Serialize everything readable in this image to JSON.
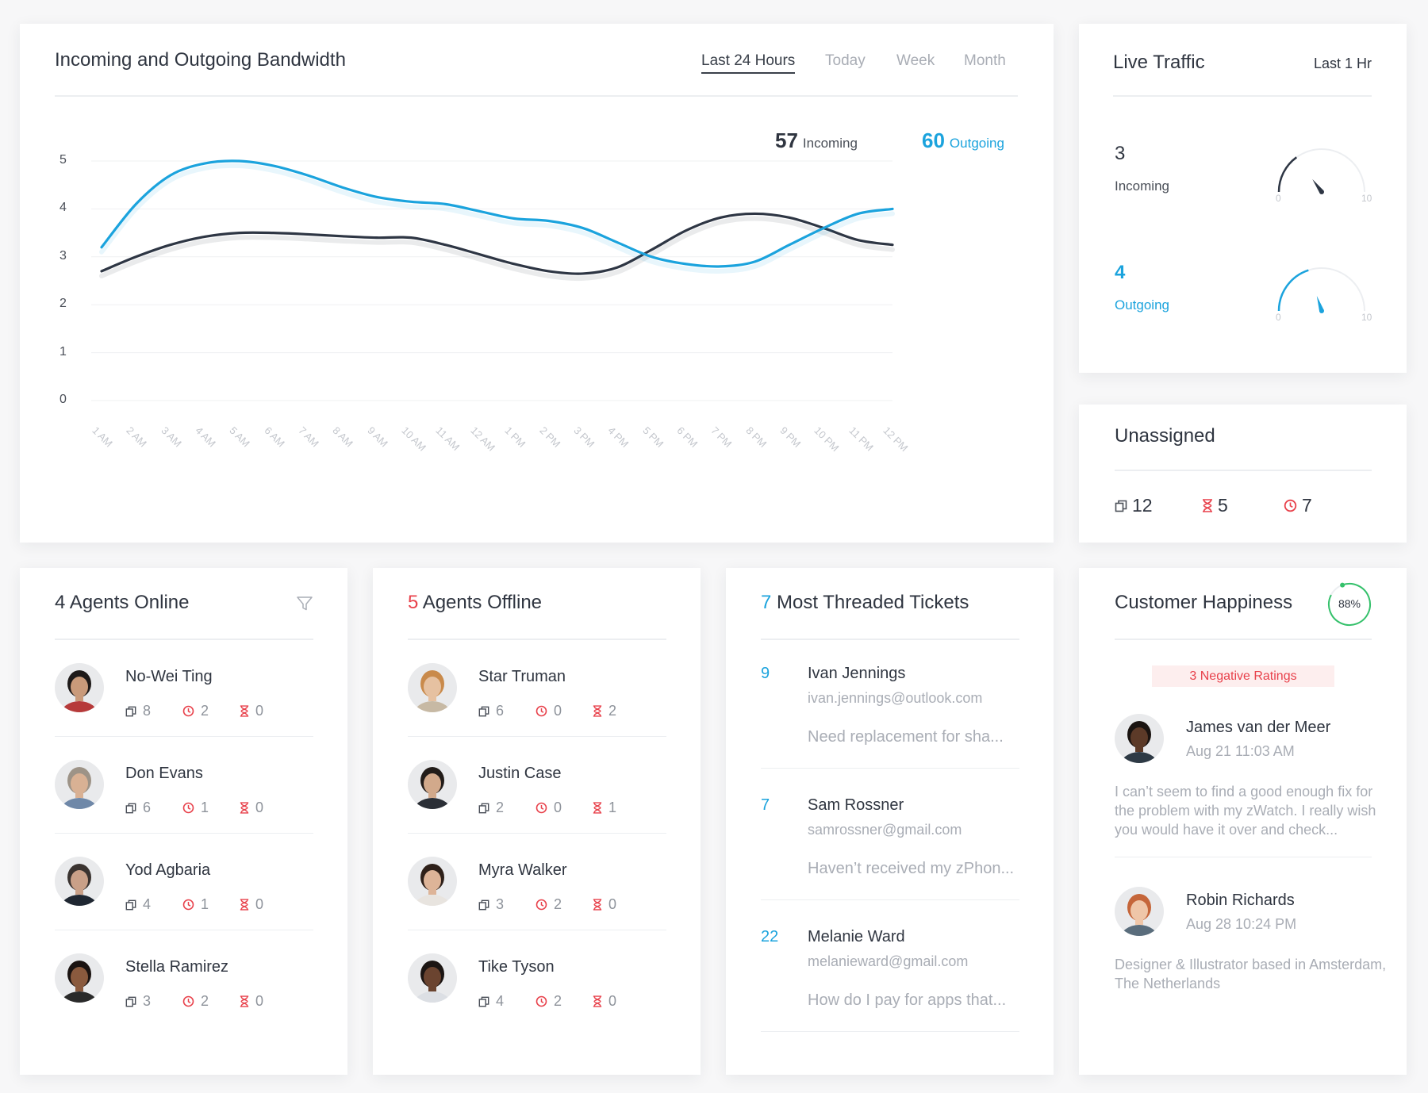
{
  "bandwidth": {
    "title": "Incoming and Outgoing Bandwidth",
    "tabs": [
      "Last 24 Hours",
      "Today",
      "Week",
      "Month"
    ],
    "active_tab": 0,
    "incoming_value": "57",
    "incoming_label": "Incoming",
    "outgoing_value": "60",
    "outgoing_label": "Outgoing"
  },
  "chart_data": {
    "type": "line",
    "x": [
      "1 AM",
      "2 AM",
      "3 AM",
      "4 AM",
      "5 AM",
      "6 AM",
      "7 AM",
      "8 AM",
      "9 AM",
      "10 AM",
      "11 AM",
      "12 AM",
      "1 PM",
      "2 PM",
      "3 PM",
      "4 PM",
      "5 PM",
      "6 PM",
      "7 PM",
      "8 PM",
      "9 PM",
      "10 PM",
      "11 PM",
      "12 PM"
    ],
    "series": [
      {
        "name": "Incoming",
        "color": "#2e3644",
        "values": [
          2.7,
          3.0,
          3.25,
          3.42,
          3.5,
          3.5,
          3.47,
          3.43,
          3.4,
          3.4,
          3.25,
          3.05,
          2.85,
          2.7,
          2.65,
          2.78,
          3.15,
          3.55,
          3.82,
          3.9,
          3.82,
          3.6,
          3.35,
          3.25
        ]
      },
      {
        "name": "Outgoing",
        "color": "#1ba3dd",
        "values": [
          3.2,
          4.1,
          4.7,
          4.95,
          5.0,
          4.9,
          4.7,
          4.45,
          4.25,
          4.15,
          4.1,
          3.95,
          3.8,
          3.75,
          3.6,
          3.3,
          3.0,
          2.85,
          2.8,
          2.9,
          3.25,
          3.6,
          3.9,
          4.0
        ]
      }
    ],
    "yticks": [
      0,
      1,
      2,
      3,
      4,
      5
    ],
    "ylim": [
      0,
      5
    ],
    "grid": true
  },
  "live_traffic": {
    "title": "Live Traffic",
    "period": "Last 1 Hr",
    "incoming": {
      "value": "3",
      "label": "Incoming",
      "gauge": 3,
      "min": "0",
      "max": "10"
    },
    "outgoing": {
      "value": "4",
      "label": "Outgoing",
      "gauge": 4,
      "min": "0",
      "max": "10"
    }
  },
  "unassigned": {
    "title": "Unassigned",
    "tickets": "12",
    "pending": "5",
    "overdue": "7"
  },
  "agents_online": {
    "count": "4",
    "label": "Agents Online",
    "agents": [
      {
        "name": "No-Wei Ting",
        "tickets": "8",
        "overdue": "2",
        "pending": "0",
        "skin": "#c99a7a",
        "hair": "#1e1a19",
        "shirt": "#b63a3a"
      },
      {
        "name": "Don Evans",
        "tickets": "6",
        "overdue": "1",
        "pending": "0",
        "skin": "#d9b194",
        "hair": "#9d9387",
        "shirt": "#6f88a8"
      },
      {
        "name": "Yod Agbaria",
        "tickets": "4",
        "overdue": "1",
        "pending": "0",
        "skin": "#c9a088",
        "hair": "#3a3330",
        "shirt": "#1f2732"
      },
      {
        "name": "Stella Ramirez",
        "tickets": "3",
        "overdue": "2",
        "pending": "0",
        "skin": "#8a5a3e",
        "hair": "#1b1412",
        "shirt": "#2a2a2a"
      }
    ]
  },
  "agents_offline": {
    "count": "5",
    "label": "Agents Offline",
    "agents": [
      {
        "name": "Star Truman",
        "tickets": "6",
        "overdue": "0",
        "pending": "2",
        "skin": "#e6c1a1",
        "hair": "#c98a4b",
        "shirt": "#c7b9a4"
      },
      {
        "name": "Justin Case",
        "tickets": "2",
        "overdue": "0",
        "pending": "1",
        "skin": "#d2a98b",
        "hair": "#221c19",
        "shirt": "#2b2f36"
      },
      {
        "name": "Myra Walker",
        "tickets": "3",
        "overdue": "2",
        "pending": "0",
        "skin": "#ddb498",
        "hair": "#2e2019",
        "shirt": "#e8e4df"
      },
      {
        "name": "Tike Tyson",
        "tickets": "4",
        "overdue": "2",
        "pending": "0",
        "skin": "#6b4430",
        "hair": "#1b1513",
        "shirt": "#dcdfe4"
      }
    ]
  },
  "threaded": {
    "count": "7",
    "label": "Most Threaded Tickets",
    "tickets": [
      {
        "count": "9",
        "name": "Ivan Jennings",
        "email": "ivan.jennings@outlook.com",
        "subject": "Need replacement for sha..."
      },
      {
        "count": "7",
        "name": "Sam Rossner",
        "email": "samrossner@gmail.com",
        "subject": "Haven’t received my zPhon..."
      },
      {
        "count": "22",
        "name": "Melanie Ward",
        "email": "melanieward@gmail.com",
        "subject": "How do I pay for apps that..."
      }
    ]
  },
  "happiness": {
    "title": "Customer Happiness",
    "percent_label": "88%",
    "percent": 0.88,
    "negative_label": "3 Negative Ratings",
    "reviews": [
      {
        "name": "James van der Meer",
        "date": "Aug 21 11:03 AM",
        "text": "I can’t seem to find a good enough fix for the problem with my zWatch. I really wish you would have it over and check...",
        "skin": "#5c3a28",
        "hair": "#1a1411",
        "shirt": "#2e3a45"
      },
      {
        "name": "Robin Richards",
        "date": "Aug 28 10:24 PM",
        "text": "Designer & Illustrator based in Amsterdam, The Netherlands",
        "skin": "#efc6a8",
        "hair": "#c5663a",
        "shirt": "#5a6d7c"
      }
    ]
  }
}
